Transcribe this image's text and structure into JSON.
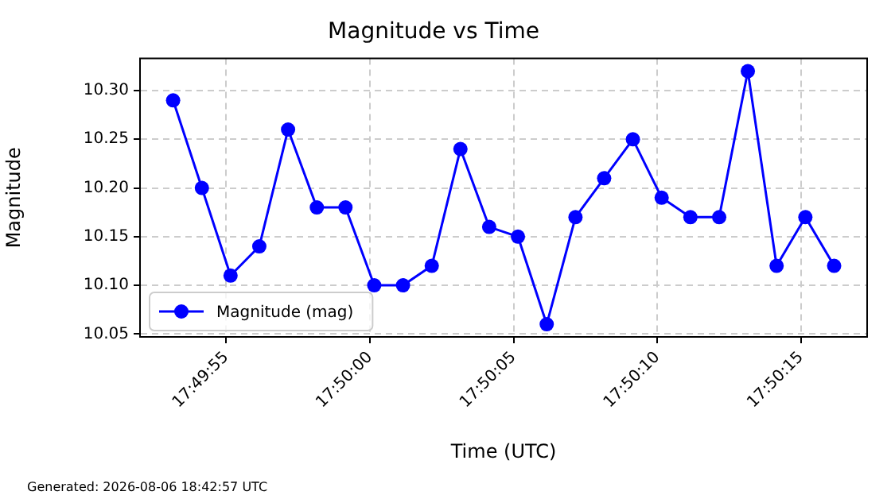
{
  "chart_data": {
    "type": "line",
    "title": "Magnitude vs Time",
    "xlabel": "Time (UTC)",
    "ylabel": "Magnitude",
    "x": [
      17.831431,
      17.831709,
      17.831986,
      17.832264,
      17.832542,
      17.83282,
      17.833097,
      17.833375,
      17.833653,
      17.833931,
      17.834208,
      17.834486,
      17.834764,
      17.835042,
      17.83532,
      17.835597,
      17.835875,
      17.836153,
      17.836431,
      17.836709,
      17.836986,
      17.837264,
      17.837542,
      17.83782
    ],
    "series": [
      {
        "name": "Magnitude (mag)",
        "color": "#0000ff",
        "values": [
          10.29,
          10.2,
          10.11,
          10.14,
          10.26,
          10.18,
          10.18,
          10.1,
          10.1,
          10.12,
          10.24,
          10.16,
          10.15,
          10.06,
          10.17,
          10.21,
          10.25,
          10.19,
          10.17,
          10.17,
          10.32,
          10.12,
          10.17,
          10.12
        ]
      }
    ],
    "xlim": [
      17.831111,
      17.838139
    ],
    "xticks": [
      {
        "value": 17.831944,
        "label": "17:49:55"
      },
      {
        "value": 17.833333,
        "label": "17:50:00"
      },
      {
        "value": 17.834722,
        "label": "17:50:05"
      },
      {
        "value": 17.836111,
        "label": "17:50:10"
      },
      {
        "value": 17.8375,
        "label": "17:50:15"
      }
    ],
    "ylim": [
      10.047,
      10.333
    ],
    "yticks": [
      {
        "value": 10.05,
        "label": "10.05"
      },
      {
        "value": 10.1,
        "label": "10.10"
      },
      {
        "value": 10.15,
        "label": "10.15"
      },
      {
        "value": 10.2,
        "label": "10.20"
      },
      {
        "value": 10.25,
        "label": "10.25"
      },
      {
        "value": 10.3,
        "label": "10.30"
      }
    ],
    "grid": true,
    "legend": "bottom left",
    "marker": "circle",
    "line_style": "solid",
    "annotations": [
      "Generated: 2026-08-06 18:42:57 UTC"
    ]
  }
}
